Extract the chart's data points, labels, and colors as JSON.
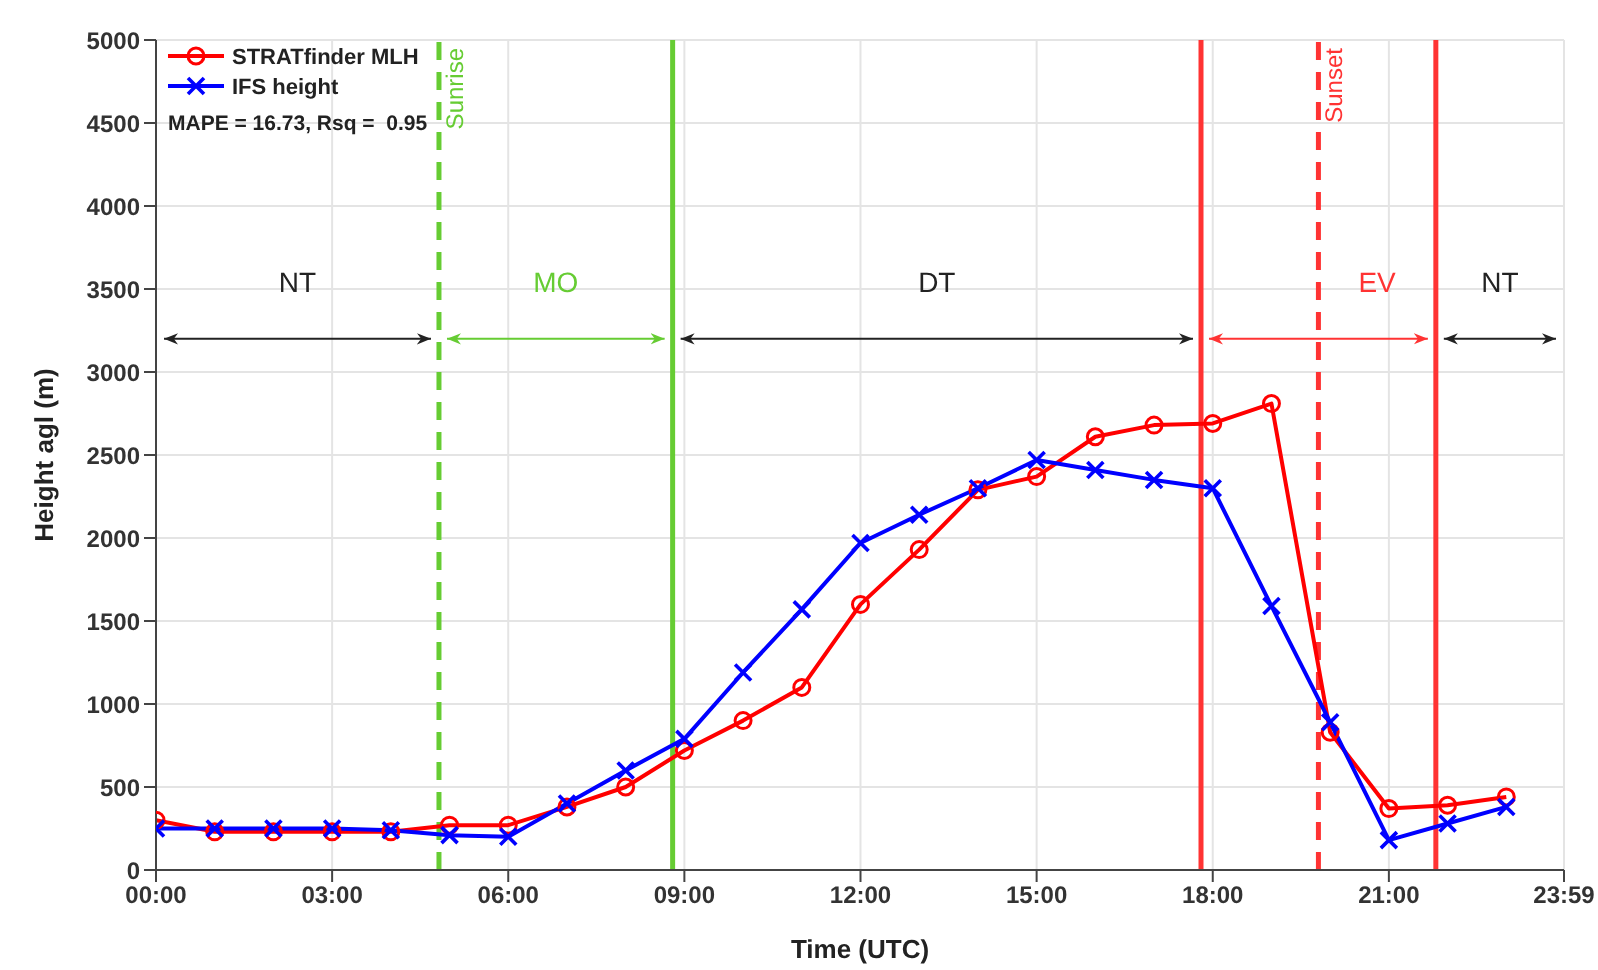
{
  "chart_data": {
    "type": "line",
    "xlabel": "Time (UTC)",
    "ylabel": "Height agl (m)",
    "x": [
      0,
      1,
      2,
      3,
      4,
      5,
      6,
      7,
      8,
      9,
      10,
      11,
      12,
      13,
      14,
      15,
      16,
      17,
      18,
      19,
      20,
      21,
      22,
      23
    ],
    "series": [
      {
        "name": "STRATfinder MLH",
        "color": "#ff0000",
        "marker": "circle",
        "values": [
          300,
          230,
          230,
          230,
          230,
          270,
          270,
          380,
          500,
          720,
          900,
          1100,
          1600,
          1930,
          2290,
          2370,
          2610,
          2680,
          2690,
          2810,
          830,
          370,
          390,
          440
        ]
      },
      {
        "name": "IFS height",
        "color": "#0000ff",
        "marker": "cross",
        "values": [
          250,
          250,
          250,
          250,
          240,
          210,
          200,
          400,
          600,
          790,
          1190,
          1570,
          1970,
          2140,
          2300,
          2470,
          2410,
          2350,
          2300,
          1590,
          890,
          180,
          280,
          380
        ]
      }
    ],
    "xlim": [
      0,
      23.983
    ],
    "xticks": [
      {
        "value": 0,
        "label": "00:00"
      },
      {
        "value": 3,
        "label": "03:00"
      },
      {
        "value": 6,
        "label": "06:00"
      },
      {
        "value": 9,
        "label": "09:00"
      },
      {
        "value": 12,
        "label": "12:00"
      },
      {
        "value": 15,
        "label": "15:00"
      },
      {
        "value": 18,
        "label": "18:00"
      },
      {
        "value": 21,
        "label": "21:00"
      },
      {
        "value": 23.983,
        "label": "23:59"
      }
    ],
    "ylim": [
      0,
      5000
    ],
    "yticks": [
      0,
      500,
      1000,
      1500,
      2000,
      2500,
      3000,
      3500,
      4000,
      4500,
      5000
    ],
    "grid": true,
    "legend": "top left",
    "ref_lines": [
      {
        "axis": "x",
        "value": 4.82,
        "label": "Sunrise",
        "color": "#66cc33",
        "line_style": "dashed"
      },
      {
        "axis": "x",
        "value": 8.8,
        "label": null,
        "color": "#66cc33",
        "line_style": "solid"
      },
      {
        "axis": "x",
        "value": 17.8,
        "label": null,
        "color": "#ff3333",
        "line_style": "solid"
      },
      {
        "axis": "x",
        "value": 19.8,
        "label": "Sunset",
        "color": "#ff3333",
        "line_style": "dashed"
      },
      {
        "axis": "x",
        "value": 21.8,
        "label": null,
        "color": "#ff3333",
        "line_style": "solid"
      }
    ],
    "annotations": [
      "MAPE = 16.73, Rsq =  0.95",
      "NT",
      "MO",
      "DT",
      "EV",
      "NT"
    ]
  }
}
